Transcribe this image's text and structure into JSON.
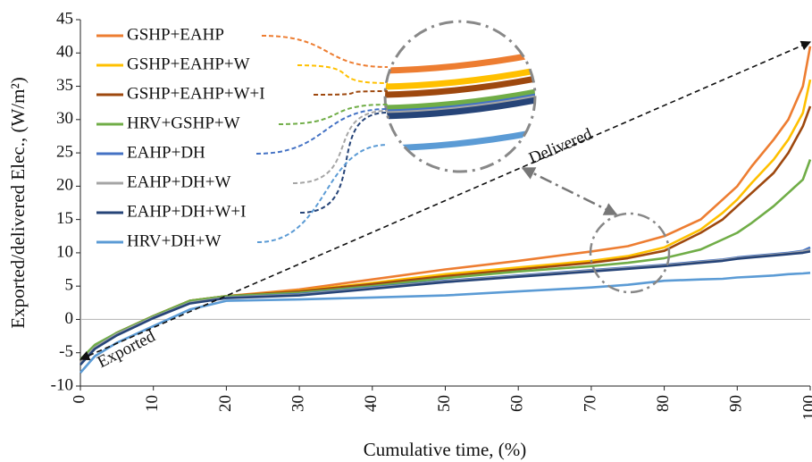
{
  "chart_data": {
    "type": "line",
    "x_label": "Cumulative time, (%)",
    "y_label": "Exported/delivered Elec., (W/m²)",
    "annotations": [
      "Delivered",
      "Exported"
    ],
    "xlim": [
      0,
      100
    ],
    "xticks": [
      0,
      10,
      20,
      30,
      40,
      50,
      60,
      70,
      80,
      90,
      100
    ],
    "ylim": [
      -10,
      45
    ],
    "yticks": [
      -10,
      -5,
      0,
      5,
      10,
      15,
      20,
      25,
      30,
      35,
      40,
      45
    ],
    "x": [
      0,
      2,
      5,
      10,
      15,
      20,
      30,
      40,
      50,
      60,
      70,
      75,
      80,
      85,
      88,
      90,
      92,
      95,
      97,
      99,
      100
    ],
    "series": [
      {
        "name": "GSHP+EAHP",
        "color": "#ED7D31",
        "values": [
          -6.5,
          -4,
          -2,
          0.5,
          2.8,
          3.5,
          4.5,
          6,
          7.5,
          8.8,
          10.2,
          11,
          12.5,
          15,
          18,
          20,
          23,
          27,
          30,
          35,
          41
        ]
      },
      {
        "name": "GSHP+EAHP+W",
        "color": "#FFC000",
        "values": [
          -6.5,
          -4,
          -2,
          0.5,
          2.8,
          3.5,
          4.3,
          5.5,
          6.8,
          7.8,
          8.8,
          9.5,
          10.8,
          13.5,
          16,
          18,
          20.5,
          24,
          27,
          31,
          36
        ]
      },
      {
        "name": "GSHP+EAHP+W+I",
        "color": "#9E480E",
        "values": [
          -6.5,
          -4,
          -2,
          0.5,
          2.8,
          3.5,
          4.2,
          5.3,
          6.5,
          7.5,
          8.5,
          9.2,
          10.3,
          13,
          15,
          17,
          19,
          22,
          25,
          29,
          32
        ]
      },
      {
        "name": "HRV+GSHP+W",
        "color": "#70AD47",
        "values": [
          -6,
          -3.8,
          -2,
          0.5,
          2.8,
          3.5,
          4,
          5,
          6.2,
          7.2,
          8,
          8.5,
          9.2,
          10.5,
          12,
          13,
          14.5,
          17,
          19,
          21,
          24
        ]
      },
      {
        "name": "EAHP+DH",
        "color": "#4472C4",
        "values": [
          -6.5,
          -4.2,
          -2.2,
          0.3,
          2.5,
          3.3,
          3.8,
          4.8,
          5.8,
          6.6,
          7.4,
          7.8,
          8.2,
          8.7,
          9,
          9.3,
          9.5,
          9.8,
          10,
          10.3,
          10.8
        ]
      },
      {
        "name": "EAHP+DH+W",
        "color": "#A5A5A5",
        "values": [
          -6.5,
          -4.2,
          -2.2,
          0.3,
          2.5,
          3.3,
          3.7,
          4.7,
          5.7,
          6.5,
          7.3,
          7.7,
          8.1,
          8.6,
          8.9,
          9.2,
          9.4,
          9.7,
          9.9,
          10.2,
          10.5
        ]
      },
      {
        "name": "EAHP+DH+W+I",
        "color": "#264478",
        "values": [
          -6.8,
          -4.4,
          -2.4,
          0.2,
          2.4,
          3.2,
          3.6,
          4.6,
          5.6,
          6.4,
          7.2,
          7.6,
          8,
          8.5,
          8.8,
          9.1,
          9.3,
          9.6,
          9.8,
          10,
          10.2
        ]
      },
      {
        "name": "HRV+DH+W",
        "color": "#5B9BD5",
        "values": [
          -8,
          -5.5,
          -3.5,
          -1,
          1.5,
          2.8,
          3,
          3.3,
          3.6,
          4.2,
          4.8,
          5.2,
          5.8,
          6,
          6.1,
          6.3,
          6.4,
          6.6,
          6.8,
          6.9,
          7
        ]
      }
    ]
  }
}
